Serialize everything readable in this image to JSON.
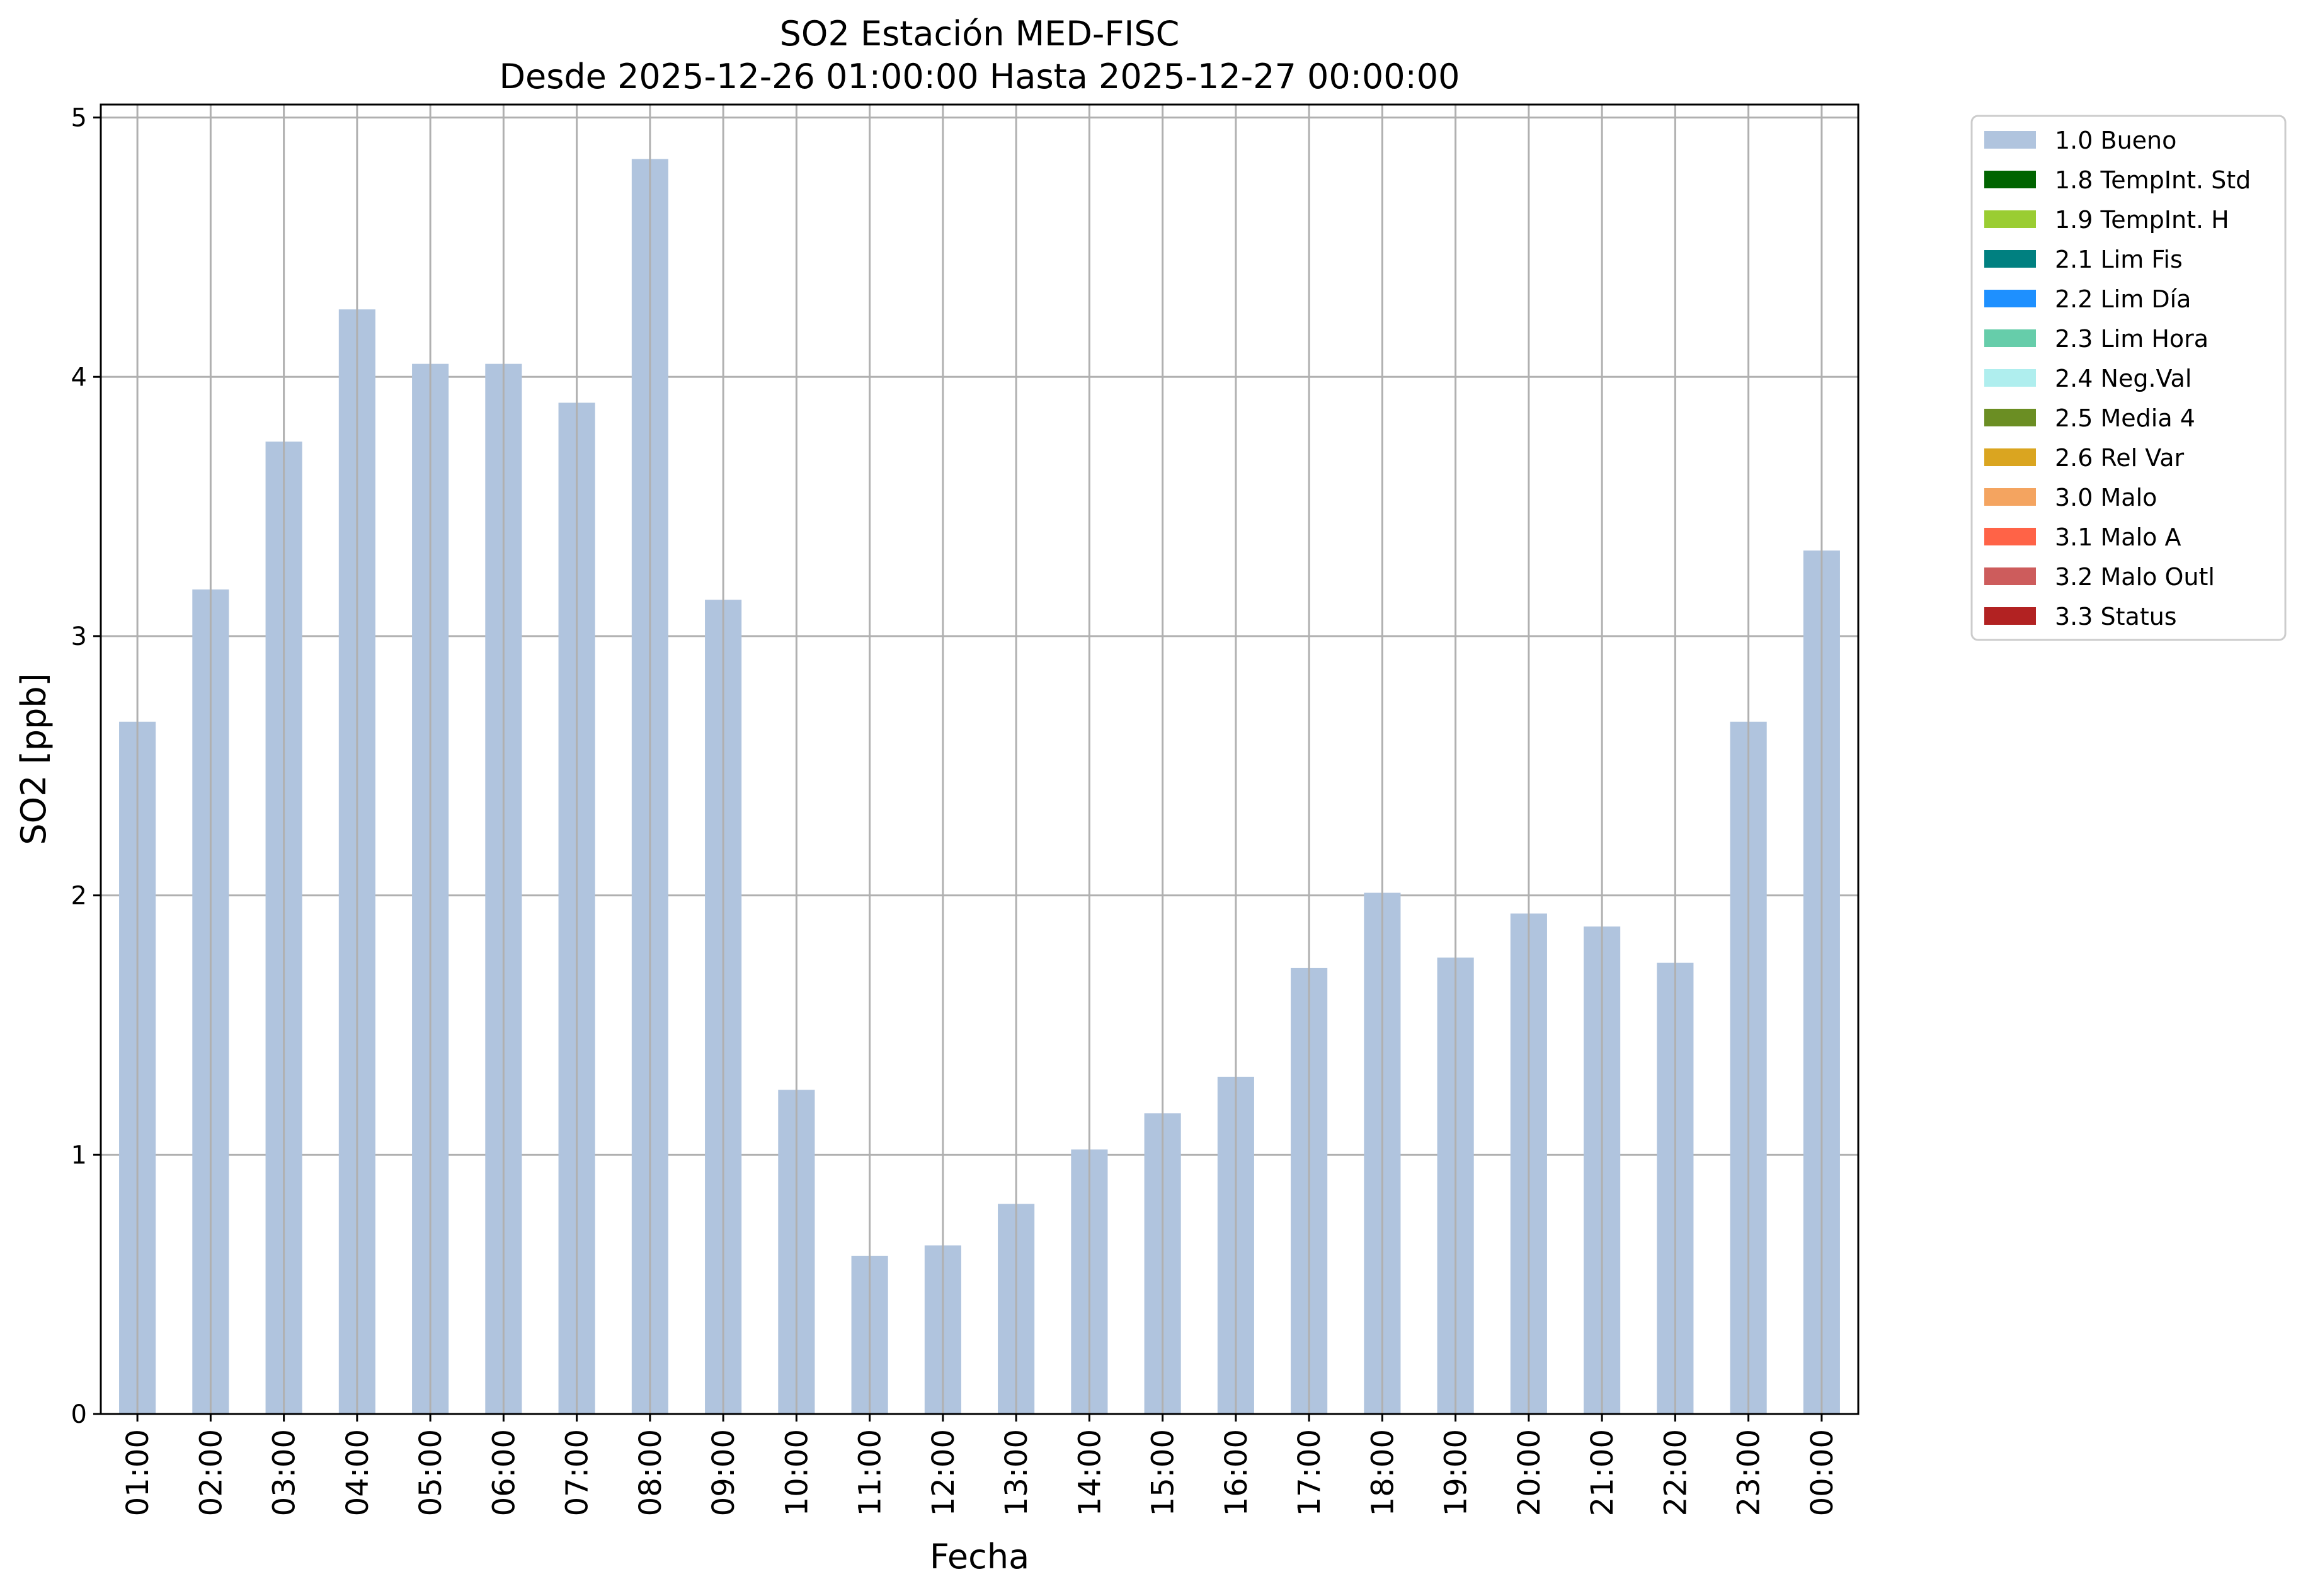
{
  "chart_data": {
    "type": "bar",
    "title": "SO2 Estación MED-FISC",
    "subtitle": "Desde 2025-12-26 01:00:00 Hasta 2025-12-27 00:00:00",
    "xlabel": "Fecha",
    "ylabel": "SO2 [ppb]",
    "ylim": [
      0,
      5.05
    ],
    "yticks": [
      "0",
      "1",
      "2",
      "3",
      "4",
      "5"
    ],
    "grid": true,
    "legend_position": "outside-top-right",
    "categories": [
      "01:00",
      "02:00",
      "03:00",
      "04:00",
      "05:00",
      "06:00",
      "07:00",
      "08:00",
      "09:00",
      "10:00",
      "11:00",
      "12:00",
      "13:00",
      "14:00",
      "15:00",
      "16:00",
      "17:00",
      "18:00",
      "19:00",
      "20:00",
      "21:00",
      "22:00",
      "23:00",
      "00:00"
    ],
    "series": [
      {
        "name": "1.0 Bueno",
        "color": "#b0c4de",
        "values": [
          2.67,
          3.18,
          3.75,
          4.26,
          4.05,
          4.05,
          3.9,
          4.84,
          3.14,
          1.25,
          0.61,
          0.65,
          0.81,
          1.02,
          1.16,
          1.3,
          1.72,
          2.01,
          1.76,
          1.93,
          1.88,
          1.74,
          2.67,
          3.33
        ]
      }
    ],
    "legend": [
      {
        "label": "1.0 Bueno",
        "color": "#b0c4de"
      },
      {
        "label": "1.8 TempInt. Std",
        "color": "#006400"
      },
      {
        "label": "1.9 TempInt. H",
        "color": "#9acd32"
      },
      {
        "label": "2.1 Lim Fis",
        "color": "#008080"
      },
      {
        "label": "2.2 Lim Día",
        "color": "#1e90ff"
      },
      {
        "label": "2.3 Lim Hora",
        "color": "#66cdaa"
      },
      {
        "label": "2.4 Neg.Val",
        "color": "#afeeee"
      },
      {
        "label": "2.5 Media 4",
        "color": "#6b8e23"
      },
      {
        "label": "2.6 Rel Var",
        "color": "#daa520"
      },
      {
        "label": "3.0 Malo",
        "color": "#f4a460"
      },
      {
        "label": "3.1 Malo A",
        "color": "#ff6347"
      },
      {
        "label": "3.2 Malo Outl",
        "color": "#cd5c5c"
      },
      {
        "label": "3.3 Status",
        "color": "#b22222"
      }
    ]
  }
}
